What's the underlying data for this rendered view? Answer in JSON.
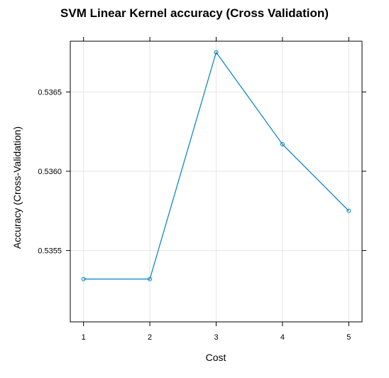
{
  "chart_data": {
    "type": "line",
    "title": "SVM Linear Kernel accuracy (Cross Validation)",
    "xlabel": "Cost",
    "ylabel": "Accuracy (Cross-Validation)",
    "x": [
      1,
      2,
      3,
      4,
      5
    ],
    "x_tick_labels": [
      "1",
      "2",
      "3",
      "4",
      "5"
    ],
    "y_ticks": [
      0.5355,
      0.536,
      0.5365
    ],
    "y_tick_labels": [
      "0.5355",
      "0.5360",
      "0.5365"
    ],
    "xlim": [
      0.8,
      5.2
    ],
    "ylim": [
      0.53505,
      0.53682
    ],
    "grid": true,
    "legend": "none",
    "series": [
      {
        "values": [
          0.53532,
          0.53532,
          0.53675,
          0.53617,
          0.53575
        ],
        "color": "#0080C0",
        "marker": "circle-open"
      }
    ],
    "colors": {
      "line": "#0080C0",
      "grid": "#E6E6E6",
      "frame": "#000000"
    }
  }
}
